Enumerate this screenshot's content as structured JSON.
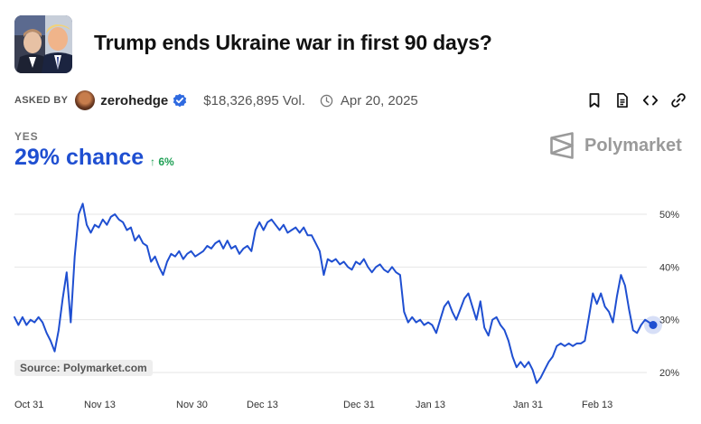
{
  "header": {
    "title": "Trump ends Ukraine war in first 90 days?"
  },
  "meta": {
    "asked_by_label": "ASKED BY",
    "username": "zerohedge",
    "volume": "$18,326,895 Vol.",
    "date": "Apr 20, 2025"
  },
  "outcome": {
    "label": "YES",
    "chance": "29% chance",
    "delta": "6%",
    "delta_direction": "up"
  },
  "brand": {
    "name": "Polymarket"
  },
  "source": "Source: Polymarket.com",
  "icons": [
    "bookmark-icon",
    "document-icon",
    "embed-code-icon",
    "link-icon",
    "clock-icon",
    "verified-badge-icon"
  ],
  "colors": {
    "line": "#1f4fd1",
    "chance_text": "#1f4fd1",
    "delta_positive": "#1fa055",
    "grid": "#e6e6e6",
    "brand_gray": "#9a9a9a"
  },
  "chart_data": {
    "type": "line",
    "title": "",
    "xlabel": "",
    "ylabel": "",
    "x_tick_labels": [
      "Oct 31",
      "Nov 13",
      "Nov 30",
      "Dec 13",
      "Dec 31",
      "Jan 13",
      "Jan 31",
      "Feb 13"
    ],
    "y_tick_labels": [
      "50%",
      "40%",
      "30%",
      "20%"
    ],
    "y_ticks": [
      50,
      40,
      30,
      20
    ],
    "ylim": [
      17,
      53
    ],
    "y_axis_side": "right",
    "grid": true,
    "last_point_marker": true,
    "series": [
      {
        "values": [
          30.5,
          29.0,
          30.5,
          29.0,
          30.0,
          29.5,
          30.5,
          29.5,
          27.5,
          26.0,
          24.0,
          28.0,
          34.0,
          39.0,
          29.5,
          42.0,
          50.0,
          52.0,
          48.0,
          46.5,
          48.0,
          47.5,
          49.0,
          48.0,
          49.5,
          50.0,
          49.0,
          48.5,
          47.0,
          47.5,
          45.0,
          46.0,
          44.5,
          44.0,
          41.0,
          42.0,
          40.0,
          38.5,
          41.0,
          42.5,
          42.0,
          43.0,
          41.5,
          42.5,
          43.0,
          42.0,
          42.5,
          43.0,
          44.0,
          43.5,
          44.5,
          45.0,
          43.5,
          45.0,
          43.5,
          44.0,
          42.5,
          43.5,
          44.0,
          43.0,
          47.0,
          48.5,
          47.0,
          48.5,
          49.0,
          48.0,
          47.0,
          48.0,
          46.5,
          47.0,
          47.5,
          46.5,
          47.5,
          46.0,
          46.0,
          44.5,
          43.0,
          38.5,
          41.5,
          41.0,
          41.5,
          40.5,
          41.0,
          40.0,
          39.5,
          41.0,
          40.5,
          41.5,
          40.0,
          39.0,
          40.0,
          40.5,
          39.5,
          39.0,
          40.0,
          39.0,
          38.5,
          31.5,
          29.5,
          30.5,
          29.5,
          30.0,
          29.0,
          29.5,
          29.0,
          27.5,
          30.0,
          32.5,
          33.5,
          31.5,
          30.0,
          32.0,
          34.0,
          35.0,
          32.5,
          30.0,
          33.5,
          28.5,
          27.0,
          30.0,
          30.5,
          29.0,
          28.0,
          26.0,
          23.0,
          21.0,
          22.0,
          21.0,
          22.0,
          20.5,
          18.0,
          19.0,
          20.5,
          22.0,
          23.0,
          25.0,
          25.5,
          25.0,
          25.5,
          25.0,
          25.5,
          25.5,
          26.0,
          30.5,
          35.0,
          33.0,
          35.0,
          32.5,
          31.5,
          29.5,
          34.5,
          38.5,
          36.5,
          32.0,
          28.0,
          27.5,
          29.0,
          30.0,
          29.5,
          29.0
        ]
      }
    ]
  }
}
